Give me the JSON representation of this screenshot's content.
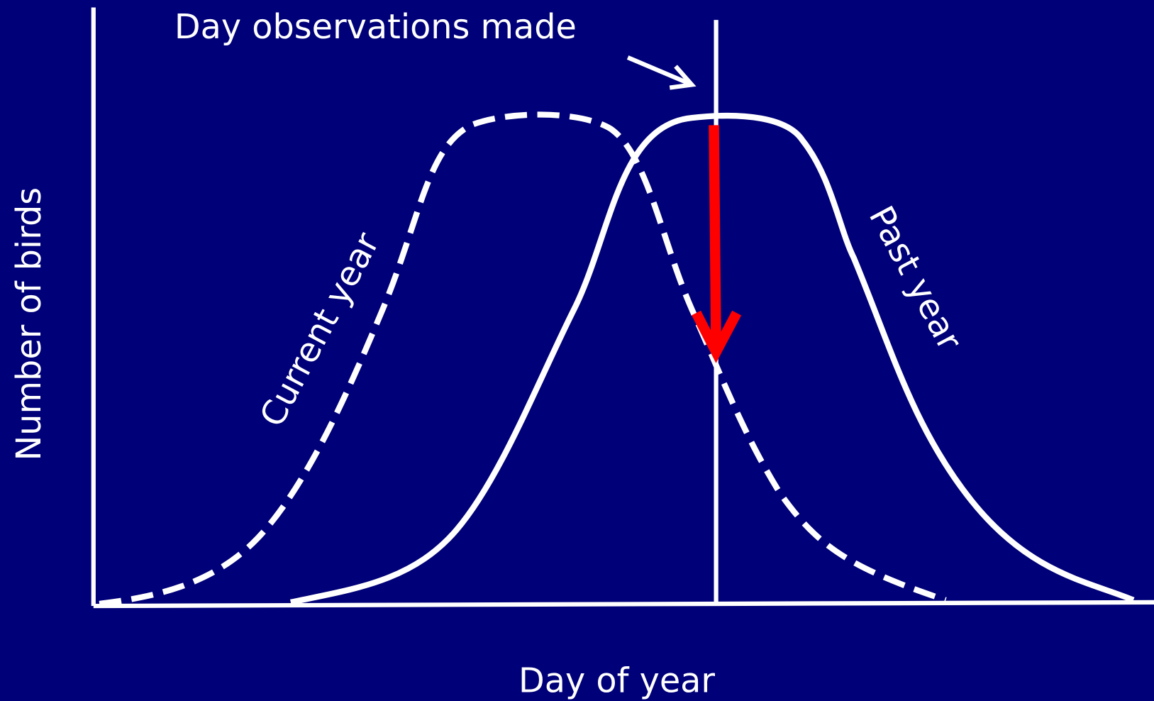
{
  "annotation": "Day observations made",
  "y_axis_label": "Number of birds",
  "x_axis_label": "Day of year",
  "curves": [
    {
      "label": "Current year"
    },
    {
      "label": "Past year"
    }
  ]
}
